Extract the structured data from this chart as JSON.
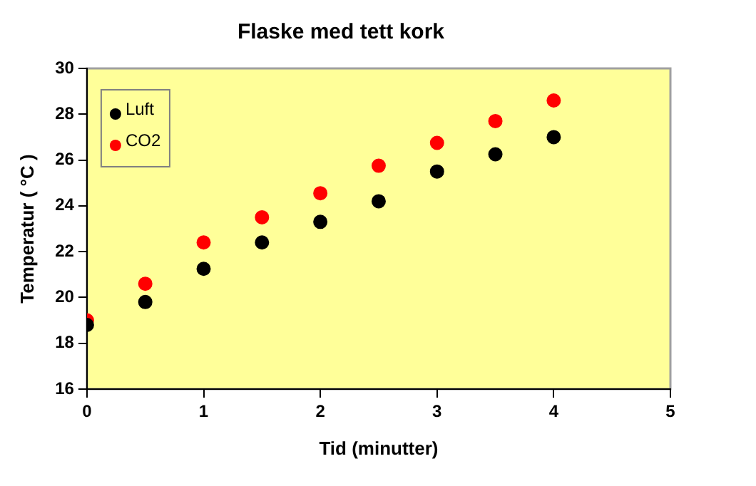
{
  "chart_data": {
    "type": "scatter",
    "title": "Flaske med tett kork",
    "xlabel": "Tid (minutter)",
    "ylabel": "Temperatur ( °C )",
    "x": [
      0,
      0.5,
      1,
      1.5,
      2,
      2.5,
      3,
      3.5,
      4
    ],
    "series": [
      {
        "name": "Luft",
        "color": "#000000",
        "values": [
          18.8,
          19.8,
          21.25,
          22.4,
          23.3,
          24.2,
          25.5,
          26.25,
          27.0
        ]
      },
      {
        "name": "CO2",
        "color": "#ff0000",
        "values": [
          19.0,
          20.6,
          22.4,
          23.5,
          24.55,
          25.75,
          26.75,
          27.7,
          28.6
        ]
      }
    ],
    "xlim": [
      0,
      5
    ],
    "xticks": [
      0,
      1,
      2,
      3,
      4,
      5
    ],
    "ylim": [
      16,
      30
    ],
    "yticks": [
      16,
      18,
      20,
      22,
      24,
      26,
      28,
      30
    ],
    "grid": false,
    "legend": "top left",
    "marker": "circle"
  }
}
